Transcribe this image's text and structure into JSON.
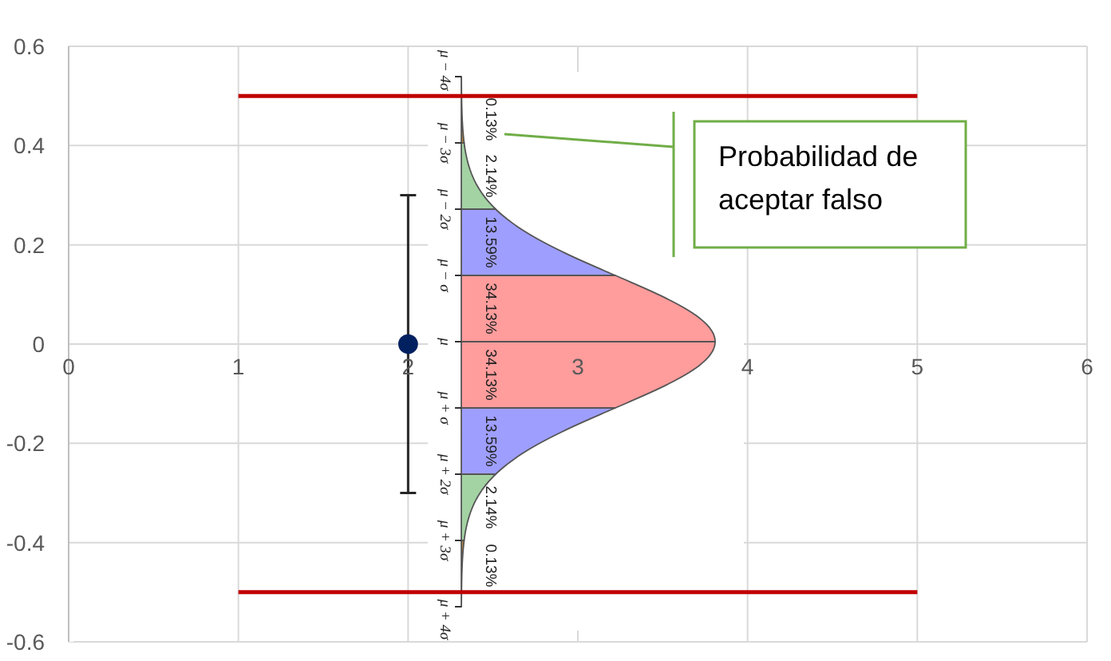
{
  "chart_data": {
    "type": "scatter",
    "series": [
      {
        "x": [
          2
        ],
        "values": [
          0
        ],
        "errors": [
          0.3
        ],
        "color": "#002060",
        "marker": "circle"
      },
      {
        "type": "line",
        "x": [
          1,
          5
        ],
        "values": [
          0.5,
          0.5
        ],
        "color": "#c00000"
      },
      {
        "type": "line",
        "x": [
          1,
          5
        ],
        "values": [
          -0.5,
          -0.5
        ],
        "color": "#c00000"
      }
    ],
    "xlim": [
      0,
      6
    ],
    "xticks": [
      0,
      1,
      2,
      3,
      4,
      5,
      6
    ],
    "ylim": [
      -0.6,
      0.6
    ],
    "yticks": [
      -0.6,
      -0.4,
      -0.2,
      0,
      0.2,
      0.4,
      0.6
    ],
    "grid": true,
    "annotations": [
      "Probabilidad de aceptar falso",
      "μ − 4σ",
      "μ − 3σ",
      "μ − 2σ",
      "μ − σ",
      "μ",
      "μ + σ",
      "μ + 2σ",
      "μ + 3σ",
      "μ + 4σ",
      "0.13%",
      "2.14%",
      "13.59%",
      "34.13%",
      "34.13%",
      "13.59%",
      "2.14%",
      "0.13%"
    ]
  }
}
